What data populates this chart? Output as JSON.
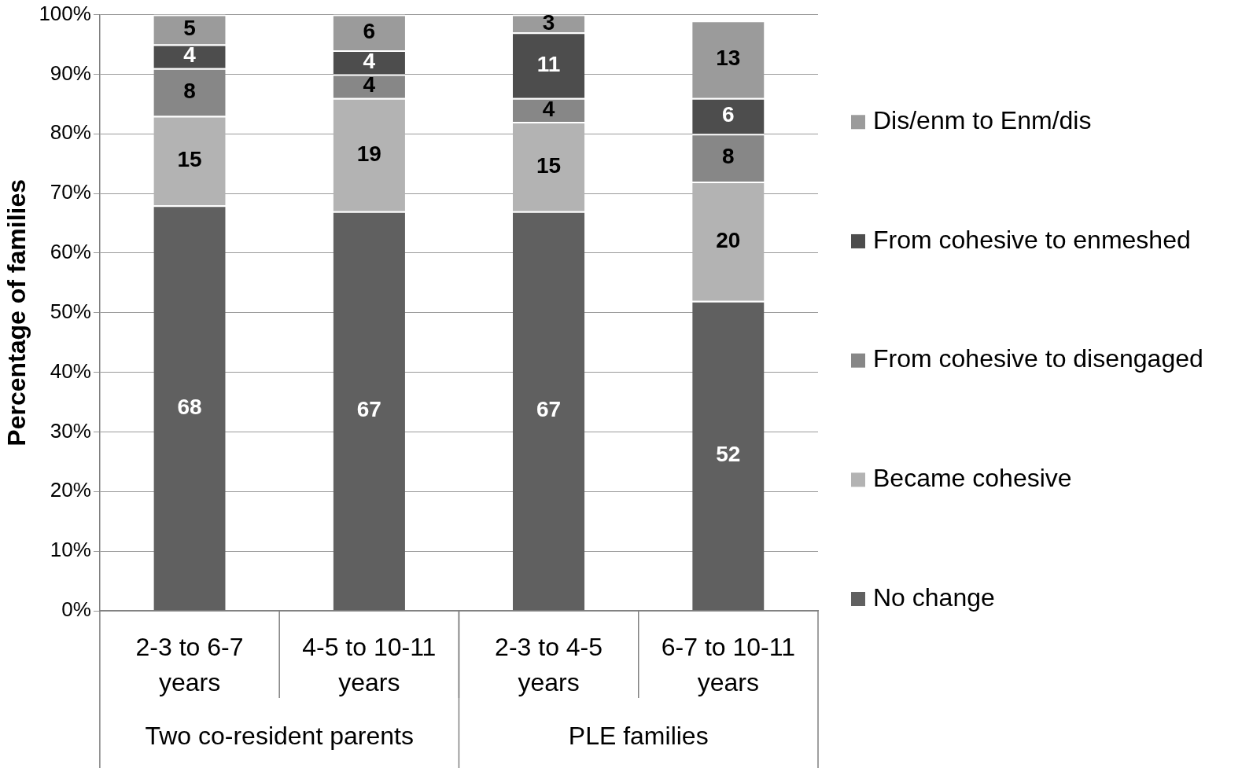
{
  "chart_data": {
    "type": "bar",
    "stacked": true,
    "ylabel": "Percentage of families",
    "categories": [
      "2-3 to 6-7 years",
      "4-5 to 10-11 years",
      "2-3 to 4-5 years",
      "6-7 to 10-11 years"
    ],
    "series": [
      {
        "name": "No change",
        "color": "#606060",
        "values": [
          68,
          67,
          67,
          52
        ]
      },
      {
        "name": "Became cohesive",
        "color": "#b3b3b3",
        "values": [
          15,
          19,
          15,
          20
        ]
      },
      {
        "name": "From cohesive to disengaged",
        "color": "#878787",
        "values": [
          8,
          4,
          4,
          8
        ]
      },
      {
        "name": "From cohesive to enmeshed",
        "color": "#4d4d4d",
        "values": [
          4,
          4,
          11,
          6
        ]
      },
      {
        "name": "Dis/enm to Enm/dis",
        "color": "#9b9b9b",
        "values": [
          5,
          6,
          3,
          13
        ]
      }
    ],
    "ylim": [
      0,
      100
    ],
    "yticks": [
      {
        "value": 0,
        "label": "0%"
      },
      {
        "value": 10,
        "label": "10%"
      },
      {
        "value": 20,
        "label": "20%"
      },
      {
        "value": 30,
        "label": "30%"
      },
      {
        "value": 40,
        "label": "40%"
      },
      {
        "value": 50,
        "label": "50%"
      },
      {
        "value": 60,
        "label": "60%"
      },
      {
        "value": 70,
        "label": "70%"
      },
      {
        "value": 80,
        "label": "80%"
      },
      {
        "value": 90,
        "label": "90%"
      },
      {
        "value": 100,
        "label": "100%"
      }
    ],
    "grid": "y",
    "legend": "right",
    "data_labels": true,
    "annotations": [
      "Two co-resident parents",
      "PLE families"
    ]
  }
}
